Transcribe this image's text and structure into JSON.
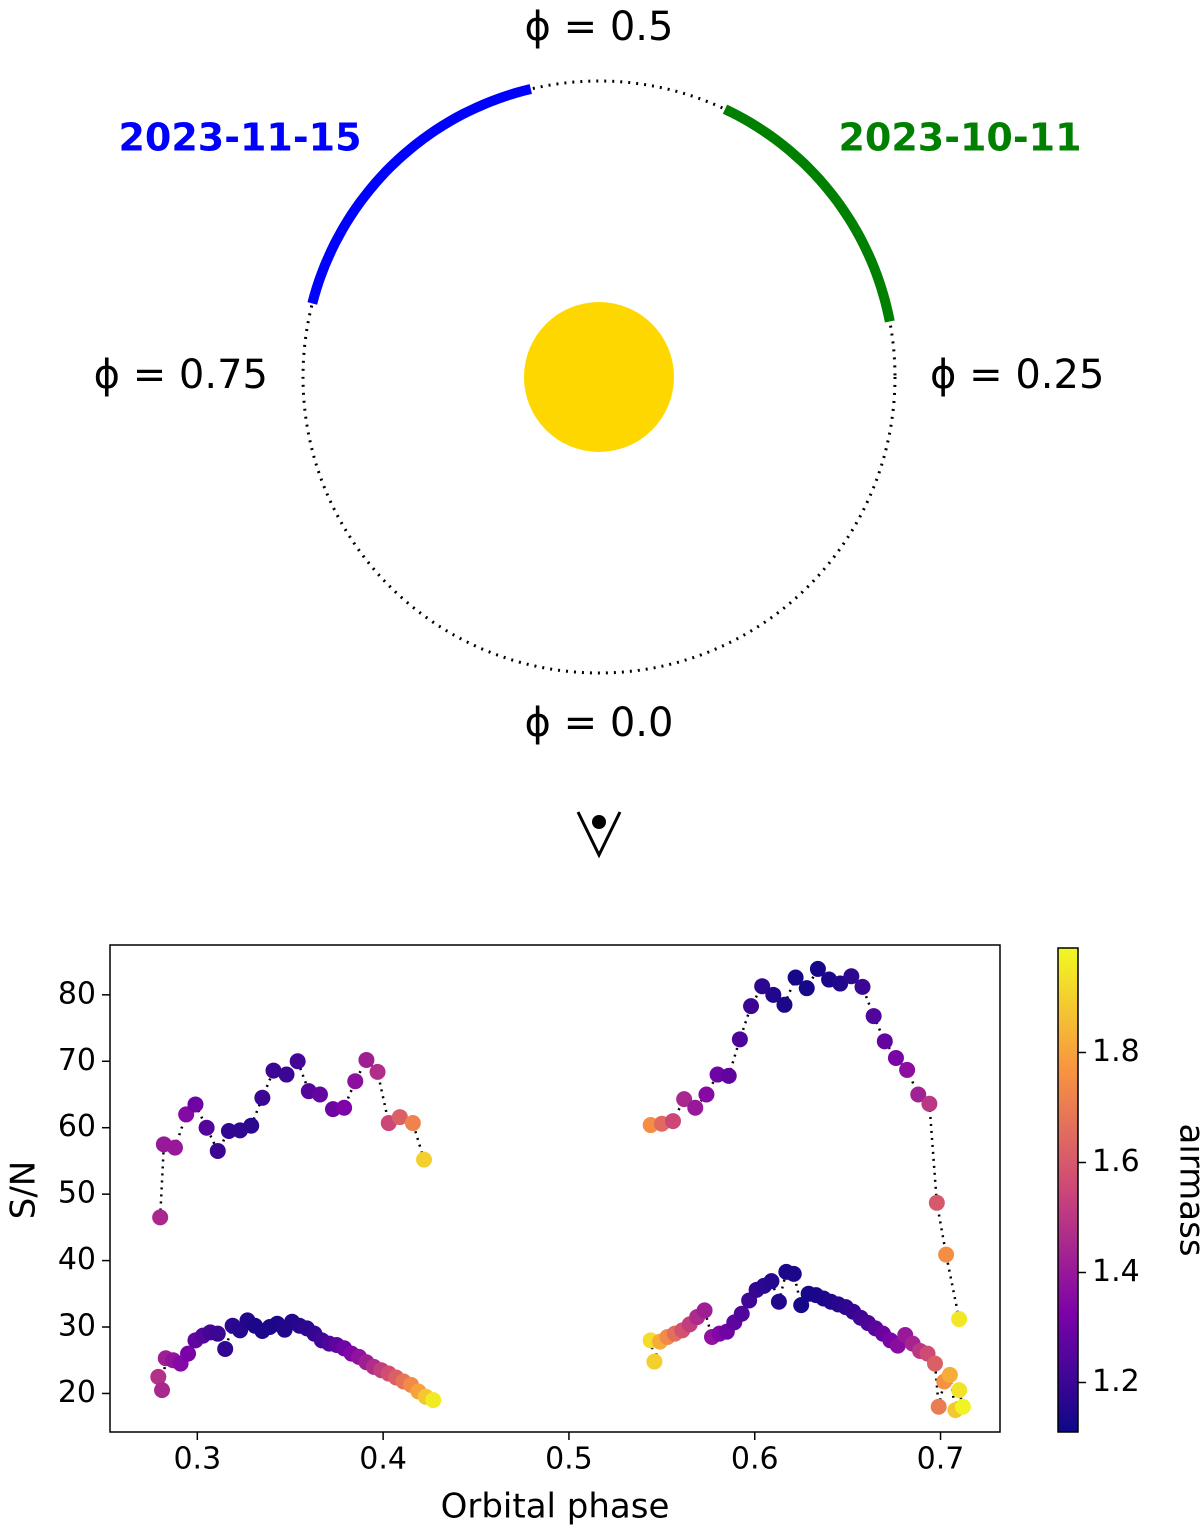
{
  "diagram": {
    "phase_labels": [
      {
        "value": 0.5,
        "label": "ϕ = 0.5"
      },
      {
        "value": 0.25,
        "label": "ϕ = 0.25"
      },
      {
        "value": 0.75,
        "label": "ϕ = 0.75"
      },
      {
        "value": 0.0,
        "label": "ϕ = 0.0"
      }
    ],
    "arcs": [
      {
        "label": "2023-11-15",
        "color": "#0000ff",
        "phase": [
          0.537,
          0.71
        ]
      },
      {
        "label": "2023-10-11",
        "color": "#008000",
        "phase": [
          0.28,
          0.43
        ]
      }
    ],
    "star_color": "#ffd700"
  },
  "chart_data": {
    "type": "scatter",
    "xlabel": "Orbital phase",
    "ylabel": "S/N",
    "xlim": [
      0.253,
      0.732
    ],
    "xticks": [
      0.3,
      0.4,
      0.5,
      0.6,
      0.7
    ],
    "ylim": [
      14.2,
      87.5
    ],
    "yticks": [
      20,
      30,
      40,
      50,
      60,
      70,
      80
    ],
    "connect": "dotted",
    "colorbar": {
      "label": "airmass",
      "cmap": "plasma",
      "clim": [
        1.11,
        1.99
      ],
      "ticks": [
        1.2,
        1.4,
        1.6,
        1.8
      ]
    },
    "series": [
      {
        "x": [
          0.28,
          0.282,
          0.288,
          0.294,
          0.299,
          0.305,
          0.311,
          0.317,
          0.323,
          0.329,
          0.335,
          0.341,
          0.348,
          0.354,
          0.36,
          0.366,
          0.373,
          0.379,
          0.385,
          0.391,
          0.397,
          0.403,
          0.409,
          0.416,
          0.422
        ],
        "values": [
          46.5,
          57.5,
          57,
          62,
          63.5,
          60,
          56.5,
          59.5,
          59.6,
          60.3,
          64.5,
          68.6,
          68,
          70,
          65.5,
          65,
          62.8,
          63,
          67,
          70.2,
          68.4,
          60.7,
          61.6,
          60.7,
          55.2
        ],
        "airmass": [
          1.45,
          1.4,
          1.4,
          1.35,
          1.3,
          1.25,
          1.2,
          1.18,
          1.18,
          1.17,
          1.2,
          1.2,
          1.2,
          1.22,
          1.25,
          1.28,
          1.3,
          1.33,
          1.37,
          1.42,
          1.47,
          1.55,
          1.62,
          1.72,
          1.9
        ]
      },
      {
        "x": [
          0.544,
          0.55,
          0.556,
          0.562,
          0.568,
          0.574,
          0.58,
          0.586,
          0.592,
          0.598,
          0.604,
          0.61,
          0.616,
          0.622,
          0.628,
          0.634,
          0.64,
          0.646,
          0.652,
          0.658,
          0.664,
          0.67,
          0.676,
          0.682,
          0.688,
          0.694,
          0.698,
          0.703,
          0.71
        ],
        "values": [
          60.4,
          60.6,
          61,
          64.3,
          63,
          65,
          68,
          67.8,
          73.3,
          78.3,
          81.3,
          80,
          78.5,
          82.6,
          81,
          83.9,
          82.3,
          81.7,
          82.8,
          81.2,
          76.8,
          73,
          70.5,
          68.7,
          65,
          63.6,
          48.7,
          40.9,
          31.2
        ],
        "airmass": [
          1.75,
          1.65,
          1.55,
          1.45,
          1.4,
          1.35,
          1.3,
          1.27,
          1.23,
          1.2,
          1.17,
          1.15,
          1.14,
          1.13,
          1.13,
          1.13,
          1.14,
          1.15,
          1.17,
          1.2,
          1.24,
          1.28,
          1.32,
          1.37,
          1.43,
          1.5,
          1.6,
          1.75,
          1.95
        ]
      },
      {
        "x": [
          0.279,
          0.281,
          0.283,
          0.287,
          0.291,
          0.295,
          0.299,
          0.303,
          0.307,
          0.311,
          0.315,
          0.319,
          0.323,
          0.327,
          0.331,
          0.335,
          0.339,
          0.343,
          0.347,
          0.351,
          0.355,
          0.359,
          0.363,
          0.367,
          0.371,
          0.375,
          0.379,
          0.383,
          0.387,
          0.391,
          0.395,
          0.399,
          0.403,
          0.407,
          0.411,
          0.415,
          0.419,
          0.423,
          0.427
        ],
        "values": [
          22.5,
          20.5,
          25.3,
          25,
          24.5,
          26,
          28,
          28.7,
          29.2,
          29,
          26.7,
          30.2,
          29.5,
          31,
          30.2,
          29.4,
          30,
          30.5,
          29.6,
          30.8,
          30.2,
          29.8,
          29,
          28,
          27.5,
          27.3,
          26.8,
          26,
          25.5,
          24.7,
          24,
          23.5,
          23,
          22.4,
          21.8,
          21.3,
          20.3,
          19.5,
          19
        ],
        "airmass": [
          1.48,
          1.45,
          1.42,
          1.38,
          1.35,
          1.32,
          1.28,
          1.25,
          1.22,
          1.2,
          1.18,
          1.17,
          1.16,
          1.15,
          1.14,
          1.14,
          1.14,
          1.14,
          1.15,
          1.15,
          1.16,
          1.17,
          1.19,
          1.21,
          1.24,
          1.27,
          1.3,
          1.34,
          1.38,
          1.42,
          1.47,
          1.52,
          1.57,
          1.62,
          1.68,
          1.74,
          1.8,
          1.88,
          1.96
        ]
      },
      {
        "x": [
          0.544,
          0.546,
          0.549,
          0.553,
          0.557,
          0.561,
          0.565,
          0.569,
          0.573,
          0.577,
          0.581,
          0.585,
          0.589,
          0.593,
          0.597,
          0.601,
          0.605,
          0.609,
          0.613,
          0.617,
          0.621,
          0.625,
          0.629,
          0.633,
          0.637,
          0.641,
          0.645,
          0.649,
          0.653,
          0.657,
          0.661,
          0.665,
          0.669,
          0.673,
          0.677,
          0.681,
          0.685,
          0.689,
          0.693,
          0.697,
          0.699,
          0.702,
          0.705,
          0.708,
          0.71,
          0.712
        ],
        "values": [
          28,
          24.8,
          27.8,
          28.5,
          29,
          29.5,
          30.4,
          31.5,
          32.5,
          28.5,
          29,
          29.3,
          30.7,
          32,
          34,
          35.6,
          36.2,
          36.9,
          33.8,
          38.3,
          38,
          33.3,
          35,
          34.8,
          34.3,
          33.8,
          33.4,
          33,
          32.3,
          31.4,
          30.6,
          29.8,
          29,
          28,
          27.2,
          28.8,
          27.5,
          26.4,
          26,
          24.5,
          18,
          21.8,
          22.8,
          17.5,
          20.5,
          18
        ],
        "airmass": [
          1.93,
          1.9,
          1.82,
          1.74,
          1.66,
          1.58,
          1.52,
          1.46,
          1.42,
          1.38,
          1.34,
          1.3,
          1.27,
          1.24,
          1.21,
          1.19,
          1.17,
          1.16,
          1.15,
          1.14,
          1.14,
          1.13,
          1.13,
          1.13,
          1.14,
          1.15,
          1.16,
          1.17,
          1.19,
          1.21,
          1.23,
          1.26,
          1.29,
          1.32,
          1.36,
          1.4,
          1.44,
          1.5,
          1.56,
          1.62,
          1.7,
          1.76,
          1.82,
          1.88,
          1.94,
          1.98
        ]
      }
    ]
  }
}
